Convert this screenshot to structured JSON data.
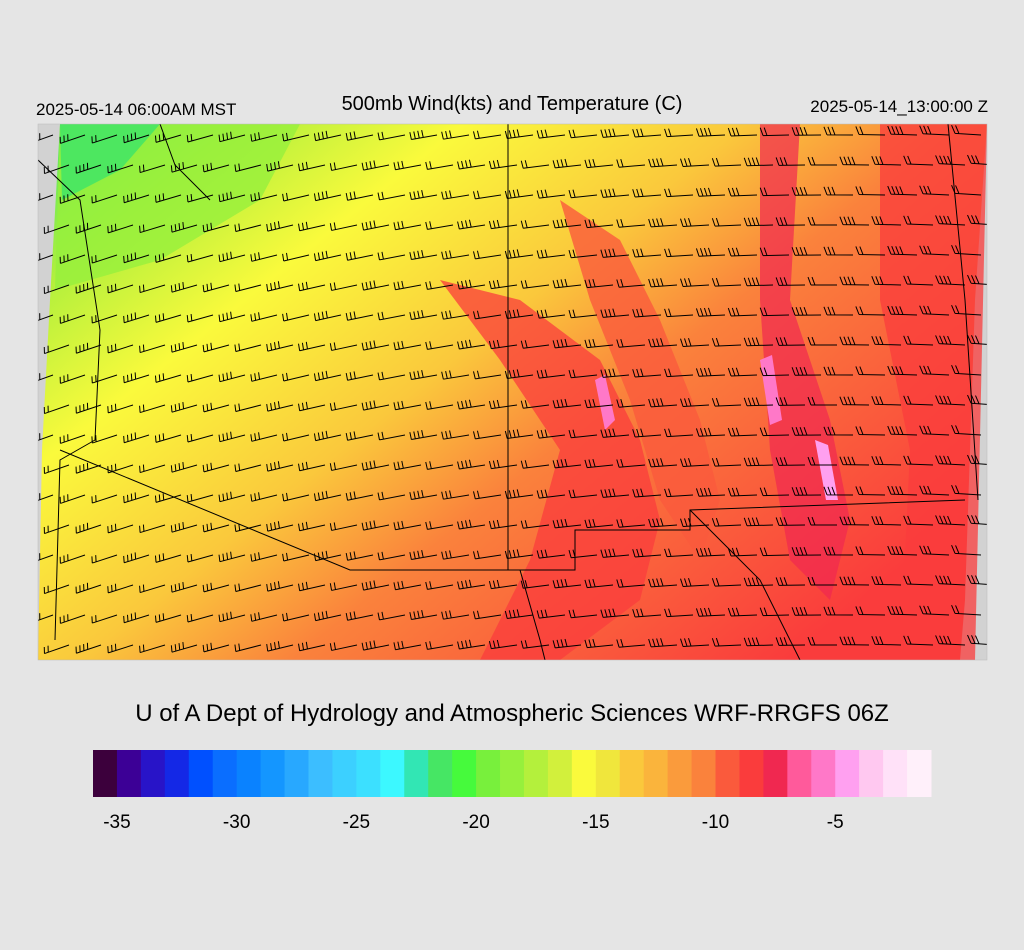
{
  "header": {
    "title": "500mb Wind(kts) and Temperature (C)",
    "valid_local": "2025-05-14 06:00AM MST",
    "valid_utc": "2025-05-14_13:00:00 Z"
  },
  "credit": "U of A Dept of Hydrology and Atmospheric Sciences WRF-RRGFS 06Z",
  "colorbar": {
    "range": [
      -36,
      -1
    ],
    "colors": [
      "#3c003c",
      "#3c0096",
      "#2814c8",
      "#1428e6",
      "#0050ff",
      "#0a6eff",
      "#0a82ff",
      "#1496ff",
      "#28a8ff",
      "#3cbeff",
      "#3cd0ff",
      "#3ce0ff",
      "#3cf8ff",
      "#32e6b4",
      "#46e664",
      "#46fa3c",
      "#78f03c",
      "#96f03c",
      "#b4f03c",
      "#d2f03c",
      "#fafa3c",
      "#f0e63c",
      "#fac83c",
      "#fab43c",
      "#fa9b3c",
      "#fa823c",
      "#fa5a3c",
      "#fa3c3c",
      "#f02850",
      "#ff5a9b",
      "#ff78c8",
      "#ffa0f0",
      "#ffc8f0",
      "#ffe1f8",
      "#fff0fa"
    ],
    "ticks": [
      -35,
      -30,
      -25,
      -20,
      -15,
      -10,
      -5
    ]
  }
}
